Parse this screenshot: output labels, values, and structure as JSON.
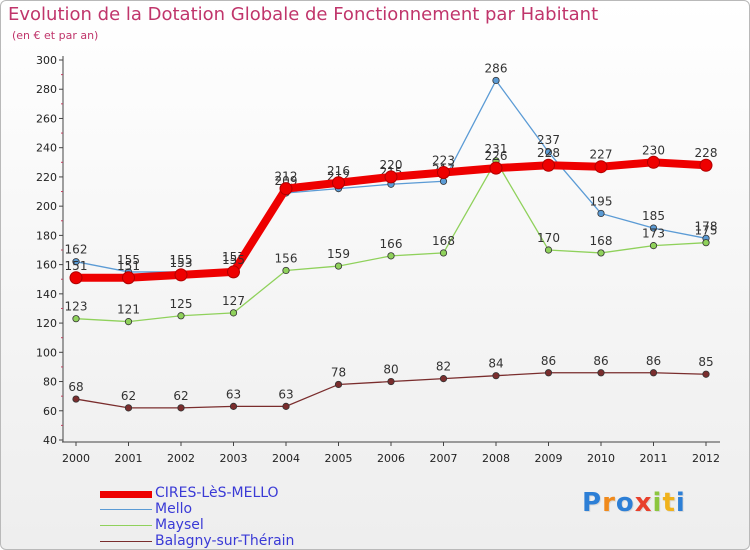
{
  "title": "Evolution de la Dotation Globale de Fonctionnement par Habitant",
  "subtitle": "(en € et par an)",
  "logo": {
    "text": "Proxiti"
  },
  "chart_data": {
    "type": "line",
    "title": "Evolution de la Dotation Globale de Fonctionnement par Habitant",
    "subtitle": "(en € et par an)",
    "xlabel": "",
    "ylabel": "",
    "categories": [
      "2000",
      "2001",
      "2002",
      "2003",
      "2004",
      "2005",
      "2006",
      "2007",
      "2008",
      "2009",
      "2010",
      "2011",
      "2012"
    ],
    "ylim": [
      40,
      300
    ],
    "yticks": [
      40,
      60,
      80,
      100,
      120,
      140,
      160,
      180,
      200,
      220,
      240,
      260,
      280,
      300
    ],
    "grid": false,
    "legend_position": "bottom-left",
    "series": [
      {
        "name": "Mello",
        "color": "#5b9bd5",
        "values": [
          162,
          155,
          155,
          157,
          209,
          212,
          215,
          217,
          286,
          237,
          195,
          185,
          178
        ]
      },
      {
        "name": "Maysel",
        "color": "#8fd15b",
        "values": [
          123,
          121,
          125,
          127,
          156,
          159,
          166,
          168,
          231,
          170,
          168,
          173,
          175
        ]
      },
      {
        "name": "Balagny-sur-Thérain",
        "color": "#7a2d2d",
        "values": [
          68,
          62,
          62,
          63,
          63,
          78,
          80,
          82,
          84,
          86,
          86,
          86,
          85
        ]
      },
      {
        "name": "CIRES-LèS-MELLO",
        "color": "#ee0000",
        "values": [
          151,
          151,
          153,
          155,
          212,
          216,
          220,
          223,
          226,
          228,
          227,
          230,
          228
        ]
      }
    ],
    "legend": [
      {
        "name": "CIRES-LèS-MELLO",
        "color": "#ee0000"
      },
      {
        "name": "Mello",
        "color": "#5b9bd5"
      },
      {
        "name": "Maysel",
        "color": "#8fd15b"
      },
      {
        "name": "Balagny-sur-Thérain",
        "color": "#7a2d2d"
      }
    ]
  }
}
